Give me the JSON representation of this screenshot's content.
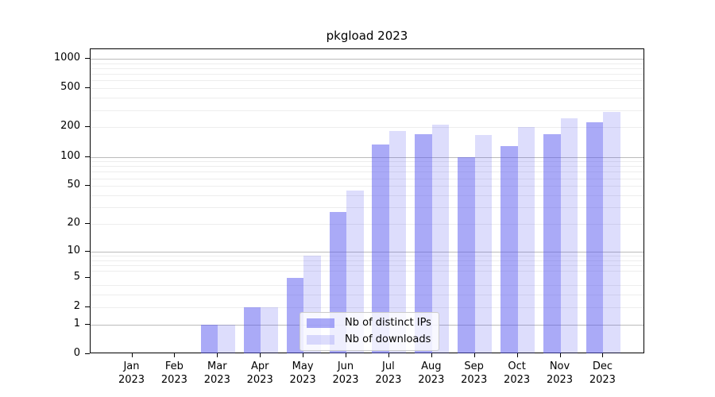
{
  "chart_data": {
    "type": "bar",
    "title": "pkgload 2023",
    "categories": [
      "Jan",
      "Feb",
      "Mar",
      "Apr",
      "May",
      "Jun",
      "Jul",
      "Aug",
      "Sep",
      "Oct",
      "Nov",
      "Dec"
    ],
    "category_year": "2023",
    "series": [
      {
        "name": "Nb of distinct IPs",
        "color": "rgba(85,85,240,0.5)",
        "values": [
          0,
          0,
          1,
          2,
          5,
          27,
          134,
          171,
          100,
          129,
          172,
          224
        ]
      },
      {
        "name": "Nb of downloads",
        "color": "rgba(85,85,240,0.2)",
        "values": [
          0,
          0,
          1,
          2,
          9,
          45,
          183,
          213,
          168,
          201,
          246,
          287
        ]
      }
    ],
    "xlabel": "",
    "ylabel": "",
    "yscale": "log1p",
    "ylim": [
      0,
      1250
    ],
    "yticks": [
      0,
      1,
      2,
      5,
      10,
      20,
      50,
      100,
      200,
      500,
      1000
    ],
    "major_gridlines": [
      1,
      10,
      100,
      1000
    ],
    "minor_gridlines": [
      2,
      3,
      4,
      6,
      7,
      8,
      9,
      20,
      30,
      40,
      50,
      60,
      70,
      80,
      90,
      200,
      300,
      400,
      500,
      600,
      700,
      800,
      900
    ],
    "grid": true,
    "legend_position": "lower center"
  },
  "colors": {
    "bar_distinct_ips": "rgba(85,85,240,0.5)",
    "bar_downloads": "rgba(85,85,240,0.2)",
    "major_grid": "#bbbbbb",
    "minor_grid": "#ededed",
    "spine": "#000000",
    "legend_border": "#cccccc"
  }
}
